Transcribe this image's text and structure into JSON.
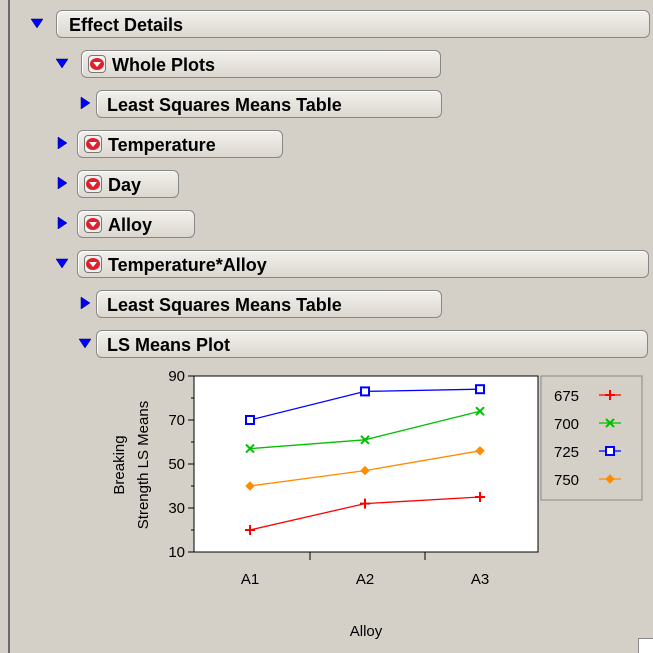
{
  "outline": {
    "effect_details": "Effect Details",
    "whole_plots": "Whole Plots",
    "lsm_table_1": "Least Squares Means Table",
    "temperature": "Temperature",
    "day": "Day",
    "alloy": "Alloy",
    "temperature_alloy": "Temperature*Alloy",
    "lsm_table_2": "Least Squares Means Table",
    "ls_means_plot": "LS Means Plot"
  },
  "colors": {
    "disclosure_blue": "#0000ff",
    "menu_red": "#e0202c"
  },
  "chart_data": {
    "type": "line",
    "categories": [
      "A1",
      "A2",
      "A3"
    ],
    "xlabel": "Alloy",
    "ylabel_line1": "Breaking",
    "ylabel_line2": "Strength LS Means",
    "ylim": [
      10,
      90
    ],
    "yticks": [
      10,
      30,
      50,
      70,
      90
    ],
    "legend_position": "right",
    "series": [
      {
        "name": "675",
        "color": "#ff0000",
        "marker": "plus",
        "values": [
          20,
          32,
          35
        ]
      },
      {
        "name": "700",
        "color": "#00c000",
        "marker": "x",
        "values": [
          57,
          61,
          74
        ]
      },
      {
        "name": "725",
        "color": "#0000ff",
        "marker": "square",
        "values": [
          70,
          83,
          84
        ]
      },
      {
        "name": "750",
        "color": "#ff8c00",
        "marker": "diamond",
        "values": [
          40,
          47,
          56
        ]
      }
    ]
  }
}
